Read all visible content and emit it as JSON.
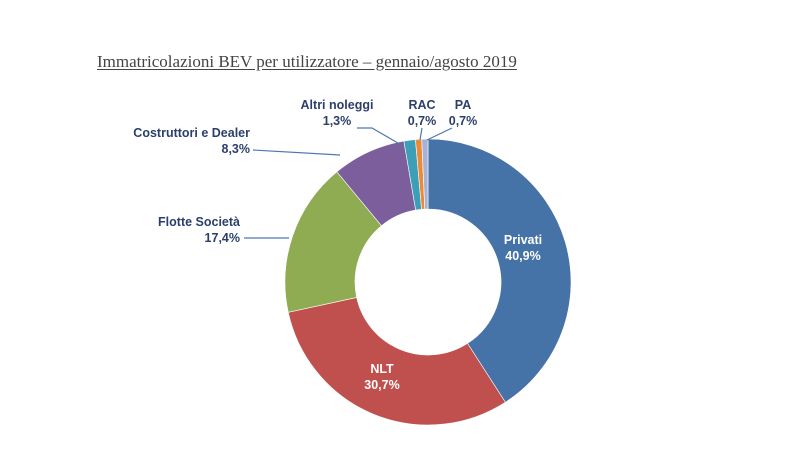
{
  "title": "Immatricolazioni BEV per utilizzatore – gennaio/agosto 2019",
  "chart_data": {
    "type": "pie",
    "variant": "donut",
    "title": "Immatricolazioni BEV per utilizzatore – gennaio/agosto 2019",
    "unit": "%",
    "slices": [
      {
        "name": "Privati",
        "value": 40.9,
        "label": "40,9%",
        "color": "#4572a7"
      },
      {
        "name": "NLT",
        "value": 30.7,
        "label": "30,7%",
        "color": "#c0504d"
      },
      {
        "name": "Flotte Società",
        "value": 17.4,
        "label": "17,4%",
        "color": "#8fac52"
      },
      {
        "name": "Costruttori e Dealer",
        "value": 8.3,
        "label": "8,3%",
        "color": "#7b5e9b"
      },
      {
        "name": "Altri noleggi",
        "value": 1.3,
        "label": "1,3%",
        "color": "#3d9fb7"
      },
      {
        "name": "RAC",
        "value": 0.7,
        "label": "0,7%",
        "color": "#ed8a3a"
      },
      {
        "name": "PA",
        "value": 0.7,
        "label": "0,7%",
        "color": "#a5b4d4"
      }
    ]
  }
}
